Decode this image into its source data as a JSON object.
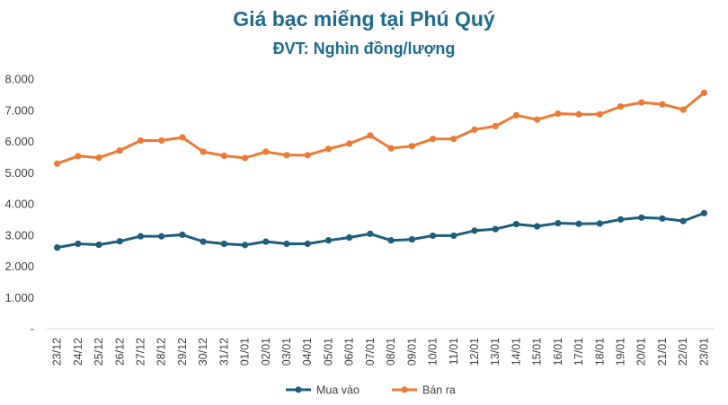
{
  "chart_data": {
    "type": "line",
    "title": "Giá bạc miếng tại Phú Quý",
    "subtitle": "ĐVT: Nghìn đồng/lượng",
    "xlabel": "",
    "ylabel": "",
    "ylim": [
      0,
      8000
    ],
    "yticks": [
      0,
      1000,
      2000,
      3000,
      4000,
      5000,
      6000,
      7000,
      8000
    ],
    "ytick_labels": [
      "-",
      "1.000",
      "2.000",
      "3.000",
      "4.000",
      "5.000",
      "6.000",
      "7.000",
      "8.000"
    ],
    "grid": false,
    "legend_position": "bottom",
    "categories": [
      "23/12",
      "24/12",
      "25/12",
      "26/12",
      "27/12",
      "28/12",
      "29/12",
      "30/12",
      "31/12",
      "01/01",
      "02/01",
      "03/01",
      "04/01",
      "05/01",
      "06/01",
      "07/01",
      "08/01",
      "09/01",
      "10/01",
      "11/01",
      "12/01",
      "13/01",
      "14/01",
      "15/01",
      "16/01",
      "17/01",
      "18/01",
      "19/01",
      "20/01",
      "21/01",
      "22/01",
      "23/01"
    ],
    "series": [
      {
        "name": "Mua vào",
        "color": "#1b5e7e",
        "values": [
          2600,
          2720,
          2690,
          2800,
          2960,
          2960,
          3010,
          2790,
          2720,
          2680,
          2790,
          2720,
          2720,
          2830,
          2920,
          3040,
          2830,
          2860,
          2980,
          2980,
          3140,
          3190,
          3350,
          3280,
          3380,
          3360,
          3370,
          3500,
          3560,
          3530,
          3450,
          3700
        ]
      },
      {
        "name": "Bán ra",
        "color": "#ec7a33",
        "values": [
          5290,
          5530,
          5480,
          5710,
          6030,
          6030,
          6130,
          5670,
          5540,
          5470,
          5670,
          5560,
          5560,
          5760,
          5930,
          6190,
          5780,
          5850,
          6080,
          6080,
          6380,
          6490,
          6840,
          6700,
          6890,
          6870,
          6870,
          7120,
          7250,
          7190,
          7020,
          7560
        ]
      }
    ]
  }
}
